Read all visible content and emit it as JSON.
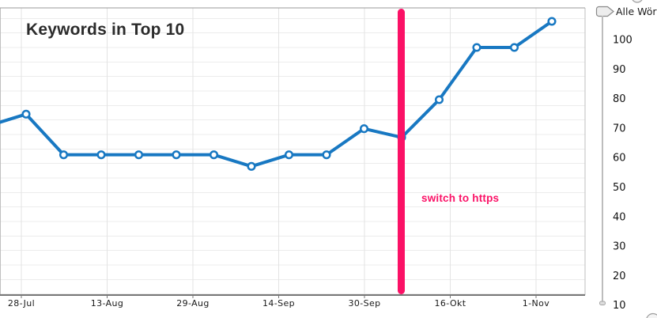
{
  "title": "Keywords in Top 10",
  "annotation": {
    "label": "switch to https",
    "color": "#fb1166"
  },
  "slider": {
    "label": "Alle Wörter"
  },
  "colors": {
    "line": "#1878c2",
    "marker_fill": "#ffffff",
    "annotation": "#fb1166",
    "grid_h": "#ececec",
    "grid_v": "#e3e3e3",
    "axis": "#777777",
    "border": "#bfbfbf",
    "top_border": "#9a9a9a"
  },
  "chart_data": {
    "type": "line",
    "title": "Keywords in Top 10",
    "x_tick_labels": [
      "28-Jul",
      "13-Aug",
      "29-Aug",
      "14-Sep",
      "30-Sep",
      "16-Okt",
      "1-Nov"
    ],
    "y_tick_labels": [
      "100",
      "90",
      "80",
      "70",
      "60",
      "50",
      "40",
      "30",
      "20",
      "10"
    ],
    "series": [
      {
        "name": "Keywords in Top 10",
        "values": [
          77,
          63,
          63,
          63,
          63,
          63,
          59,
          63,
          63,
          72,
          69,
          82,
          100,
          100,
          109
        ],
        "color": "#1878c2"
      }
    ],
    "lead_in_value": 73,
    "point_cadence": "weekly",
    "x_tick_cadence_days": 16,
    "ylim": [
      10,
      113
    ],
    "grid": true,
    "legend": "none",
    "annotation": {
      "type": "vertical-line",
      "text": "switch to https",
      "between_ticks": [
        "30-Sep",
        "16-Okt"
      ],
      "color": "#fb1166"
    }
  }
}
